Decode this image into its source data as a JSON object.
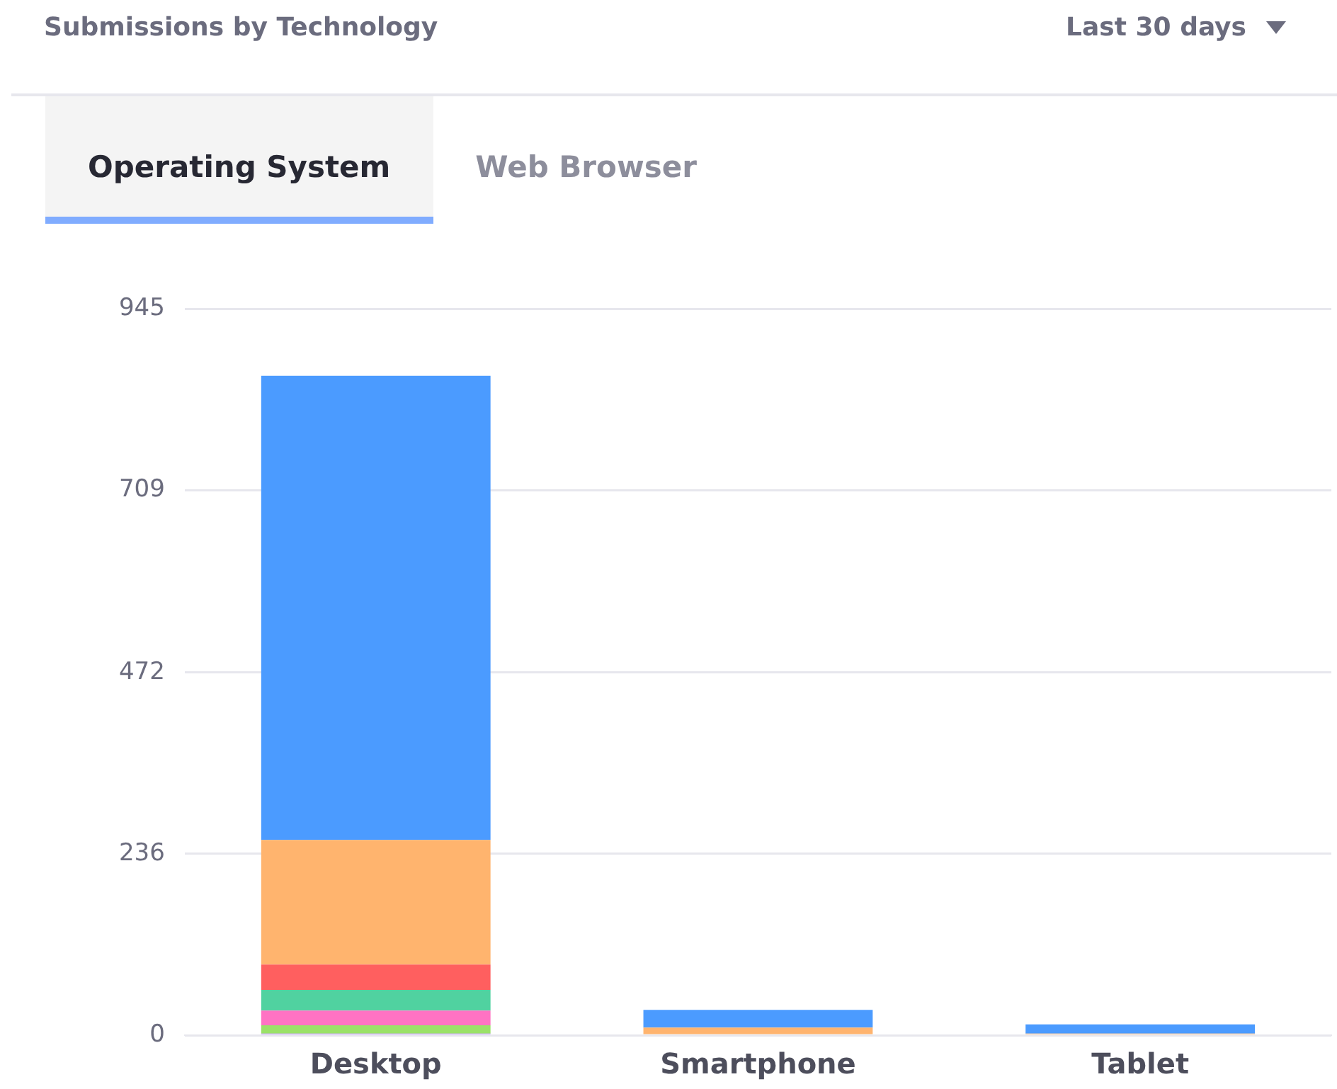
{
  "chart_data": {
    "type": "bar",
    "title": "Submissions by Technology",
    "annotations": [
      "Last 30 days",
      "Operating System",
      "Web Browser"
    ],
    "categories": [
      "Desktop",
      "Smartphone",
      "Tablet"
    ],
    "stacked": true,
    "series": [
      {
        "color": "#af78ff",
        "values": [
          2,
          0,
          0
        ]
      },
      {
        "color": "#9be169",
        "values": [
          11,
          0,
          0
        ]
      },
      {
        "color": "#ff73c3",
        "values": [
          19,
          0,
          0
        ]
      },
      {
        "color": "#50d2a0",
        "values": [
          27,
          0,
          0
        ]
      },
      {
        "color": "#ff5f5f",
        "values": [
          33,
          0,
          0
        ]
      },
      {
        "color": "#ffb46e",
        "values": [
          162,
          10,
          2
        ]
      },
      {
        "color": "#4b9bff",
        "values": [
          604,
          23,
          12
        ]
      }
    ],
    "ylim": [
      0,
      945
    ],
    "yticks": [
      0,
      236,
      472,
      709,
      945
    ],
    "grid": "y",
    "legend": false
  }
}
